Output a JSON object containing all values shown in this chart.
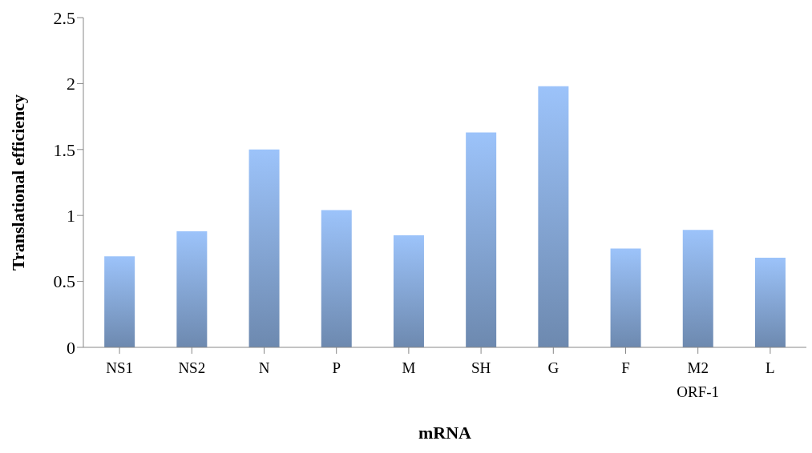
{
  "chart_data": {
    "type": "bar",
    "xlabel": "mRNA",
    "ylabel": "Translational efficiency",
    "categories": [
      "NS1",
      "NS2",
      "N",
      "P",
      "M",
      "SH",
      "G",
      "F",
      "M2\nORF-1",
      "L"
    ],
    "values": [
      0.69,
      0.88,
      1.5,
      1.04,
      0.85,
      1.63,
      1.98,
      0.75,
      0.89,
      0.68
    ],
    "color": "#9cc3fa",
    "ylim": [
      0,
      2.5
    ],
    "yticks": [
      0,
      0.5,
      1,
      1.5,
      2,
      2.5
    ],
    "grid": false,
    "legend": false
  }
}
